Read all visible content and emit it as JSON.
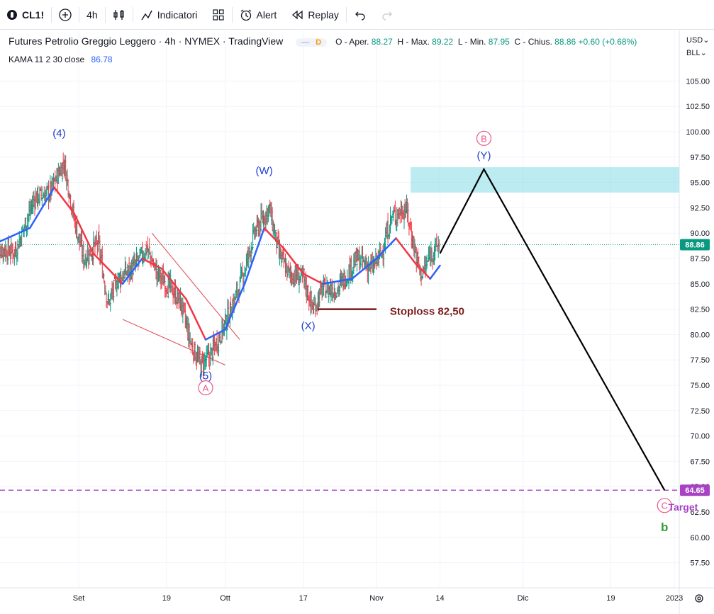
{
  "toolbar": {
    "symbol": "CL1!",
    "interval": "4h",
    "indicators_label": "Indicatori",
    "alert_label": "Alert",
    "replay_label": "Replay"
  },
  "legend": {
    "title": "Futures Petrolio Greggio Leggero · 4h · NYMEX · TradingView",
    "badge": "D",
    "open_label": "O - Aper.",
    "open": "88.27",
    "high_label": "H - Max.",
    "high": "89.22",
    "low_label": "L - Min.",
    "low": "87.95",
    "close_label": "C - Chius.",
    "close": "88.86",
    "change": "+0.60 (+0.68%)",
    "indicator_name": "KAMA 11 2 30 close",
    "indicator_value": "86.78"
  },
  "currency": "USD",
  "unit": "BLL",
  "colors": {
    "up": "#089981",
    "down": "#f23645",
    "kama_up": "#2962ff",
    "kama_down": "#f23645",
    "price_line": "#089981",
    "target_line": "#a742c4",
    "zone": "#8fdde8",
    "wave_blue": "#1d3ecf",
    "wave_pink": "#e9578a",
    "stoploss": "#7b1a1a",
    "wave_b": "#2e9e3a"
  },
  "chart_data": {
    "type": "candlestick",
    "y_ticks": [
      57.5,
      60,
      62.5,
      65,
      67.5,
      70,
      72.5,
      75,
      77.5,
      80,
      82.5,
      85,
      87.5,
      90,
      92.5,
      95,
      97.5,
      100,
      102.5,
      105
    ],
    "y_tick_labels": [
      "57.50",
      "60.00",
      "62.50",
      "65.00",
      "67.50",
      "70.00",
      "72.50",
      "75.00",
      "77.50",
      "80.00",
      "82.50",
      "85.00",
      "87.50",
      "90.00",
      "92.50",
      "95.00",
      "97.50",
      "100.00",
      "102.50",
      "105.00"
    ],
    "x_ticks": [
      "Set",
      "19",
      "Ott",
      "17",
      "Nov",
      "14",
      "Dic",
      "19",
      "2023"
    ],
    "x_tick_dates": [
      "2022-09-01",
      "2022-09-19",
      "2022-10-01",
      "2022-10-17",
      "2022-11-01",
      "2022-11-14",
      "2022-12-01",
      "2022-12-19",
      "2023-01-01"
    ],
    "last_price": 88.86,
    "last_price_label": "88.86",
    "target_price": 64.65,
    "target_price_label": "64.65",
    "price_path": [
      [
        "2022-08-15",
        88.5
      ],
      [
        "2022-08-19",
        88.2
      ],
      [
        "2022-08-23",
        93.5
      ],
      [
        "2022-08-26",
        94.0
      ],
      [
        "2022-08-29",
        97.0
      ],
      [
        "2022-08-31",
        91.5
      ],
      [
        "2022-09-02",
        87.5
      ],
      [
        "2022-09-05",
        89.0
      ],
      [
        "2022-09-07",
        83.0
      ],
      [
        "2022-09-09",
        85.5
      ],
      [
        "2022-09-12",
        86.5
      ],
      [
        "2022-09-15",
        88.5
      ],
      [
        "2022-09-17",
        86.0
      ],
      [
        "2022-09-20",
        84.5
      ],
      [
        "2022-09-22",
        83.0
      ],
      [
        "2022-09-24",
        79.0
      ],
      [
        "2022-09-26",
        77.0
      ],
      [
        "2022-09-28",
        78.0
      ],
      [
        "2022-09-30",
        80.0
      ],
      [
        "2022-10-03",
        83.5
      ],
      [
        "2022-10-05",
        86.5
      ],
      [
        "2022-10-07",
        90.0
      ],
      [
        "2022-10-10",
        92.5
      ],
      [
        "2022-10-12",
        88.0
      ],
      [
        "2022-10-14",
        86.0
      ],
      [
        "2022-10-17",
        85.5
      ],
      [
        "2022-10-19",
        82.5
      ],
      [
        "2022-10-21",
        84.5
      ],
      [
        "2022-10-24",
        84.5
      ],
      [
        "2022-10-26",
        86.0
      ],
      [
        "2022-10-28",
        87.5
      ],
      [
        "2022-10-31",
        86.5
      ],
      [
        "2022-11-02",
        88.0
      ],
      [
        "2022-11-04",
        91.5
      ],
      [
        "2022-11-07",
        92.5
      ],
      [
        "2022-11-09",
        88.0
      ],
      [
        "2022-11-10",
        86.0
      ],
      [
        "2022-11-11",
        86.5
      ],
      [
        "2022-11-12",
        88.0
      ],
      [
        "2022-11-14",
        88.9
      ]
    ],
    "kama_path": [
      [
        "2022-08-15",
        89.0
      ],
      [
        "2022-08-22",
        90.5
      ],
      [
        "2022-08-27",
        94.5
      ],
      [
        "2022-08-31",
        92.0
      ],
      [
        "2022-09-04",
        88.0
      ],
      [
        "2022-09-10",
        85.0
      ],
      [
        "2022-09-14",
        87.5
      ],
      [
        "2022-09-18",
        86.5
      ],
      [
        "2022-09-23",
        83.5
      ],
      [
        "2022-09-27",
        79.5
      ],
      [
        "2022-10-01",
        80.5
      ],
      [
        "2022-10-05",
        85.0
      ],
      [
        "2022-10-09",
        90.5
      ],
      [
        "2022-10-13",
        88.5
      ],
      [
        "2022-10-17",
        86.0
      ],
      [
        "2022-10-21",
        85.0
      ],
      [
        "2022-10-27",
        85.5
      ],
      [
        "2022-11-01",
        87.5
      ],
      [
        "2022-11-05",
        89.5
      ],
      [
        "2022-11-09",
        87.0
      ],
      [
        "2022-11-12",
        85.5
      ],
      [
        "2022-11-14",
        86.8
      ]
    ],
    "projection": [
      [
        "2022-11-14",
        88.0
      ],
      [
        "2022-11-23",
        96.3
      ],
      [
        "2022-12-30",
        64.65
      ]
    ],
    "resistance_zone": {
      "from": "2022-11-08",
      "to": "2023-01-05",
      "low": 94.0,
      "high": 96.5
    },
    "wedge_upper": [
      [
        "2022-09-16",
        90.0
      ],
      [
        "2022-10-04",
        79.5
      ]
    ],
    "wedge_lower": [
      [
        "2022-09-10",
        81.5
      ],
      [
        "2022-10-01",
        77.0
      ]
    ],
    "stoploss_line": {
      "from": "2022-10-20",
      "to": "2022-11-01",
      "price": 82.5
    },
    "annotations": [
      {
        "text": "(4)",
        "date": "2022-08-28",
        "price": 99.5,
        "kind": "blue"
      },
      {
        "text": "(W)",
        "date": "2022-10-09",
        "price": 95.8,
        "kind": "blue"
      },
      {
        "text": "(X)",
        "date": "2022-10-18",
        "price": 80.5,
        "kind": "blue"
      },
      {
        "text": "(5)",
        "date": "2022-09-27",
        "price": 75.6,
        "kind": "blue"
      },
      {
        "text": "A",
        "date": "2022-09-27",
        "price": 74.4,
        "kind": "pink-circle"
      },
      {
        "text": "(Y)",
        "date": "2022-11-23",
        "price": 97.3,
        "kind": "blue"
      },
      {
        "text": "B",
        "date": "2022-11-23",
        "price": 99.0,
        "kind": "pink-circle"
      },
      {
        "text": "C",
        "date": "2022-12-30",
        "price": 62.8,
        "kind": "pink-circle"
      },
      {
        "text": "b",
        "date": "2022-12-30",
        "price": 60.6,
        "kind": "green"
      },
      {
        "text": "Stoploss 82,50",
        "date": "2022-11-02",
        "price": 82.3,
        "kind": "stoploss"
      },
      {
        "text": "Target",
        "date": "2023-01-05",
        "price": 63.0,
        "kind": "target"
      }
    ]
  }
}
